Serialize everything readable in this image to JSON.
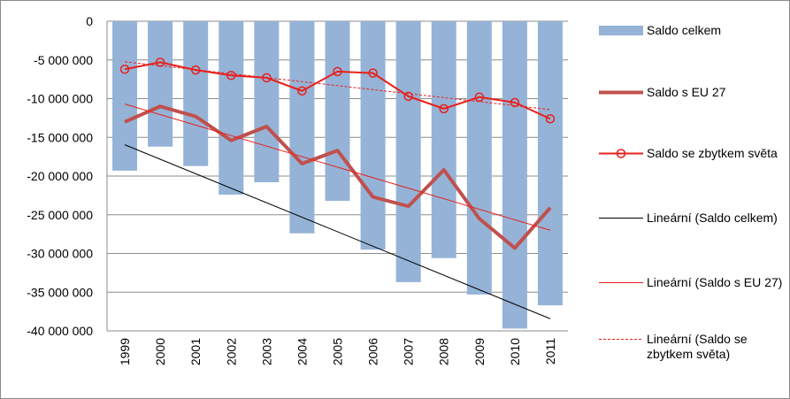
{
  "chart_data": {
    "type": "combo",
    "categories": [
      "1999",
      "2000",
      "2001",
      "2002",
      "2003",
      "2004",
      "2005",
      "2006",
      "2007",
      "2008",
      "2009",
      "2010",
      "2011"
    ],
    "ylim": [
      -40000000,
      0
    ],
    "yticks": [
      {
        "value": -40000000,
        "label": "-40 000 000"
      },
      {
        "value": -35000000,
        "label": "-35 000 000"
      },
      {
        "value": -30000000,
        "label": "-30 000 000"
      },
      {
        "value": -25000000,
        "label": "-25 000 000"
      },
      {
        "value": -20000000,
        "label": "-20 000 000"
      },
      {
        "value": -15000000,
        "label": "-15 000 000"
      },
      {
        "value": -10000000,
        "label": "-10 000 000"
      },
      {
        "value": -5000000,
        "label": "-5 000 000"
      },
      0
    ],
    "grid": true,
    "legend": "right",
    "series": [
      {
        "name": "Saldo celkem",
        "type": "bar",
        "color": "#95b3d7",
        "values": [
          -19300000,
          -16200000,
          -18700000,
          -22400000,
          -20800000,
          -27400000,
          -23200000,
          -29500000,
          -33700000,
          -30600000,
          -35300000,
          -39700000,
          -36700000
        ]
      },
      {
        "name": "Saldo s EU 27",
        "type": "line",
        "color": "#c0504d",
        "width": 4,
        "values": [
          -13000000,
          -11000000,
          -12300000,
          -15400000,
          -13600000,
          -18400000,
          -16700000,
          -22700000,
          -23900000,
          -19200000,
          -25500000,
          -29300000,
          -24100000
        ]
      },
      {
        "name": "Saldo se zbytkem světa",
        "type": "line",
        "color": "#e8201c",
        "width": 2,
        "marker": "circle",
        "values": [
          -6200000,
          -5300000,
          -6300000,
          -7000000,
          -7300000,
          -9000000,
          -6500000,
          -6700000,
          -9700000,
          -11300000,
          -9800000,
          -10500000,
          -12600000
        ]
      },
      {
        "name": "Lineární (Saldo celkem)",
        "type": "trendline",
        "color": "#000000",
        "width": 1
      },
      {
        "name": "Lineární (Saldo s EU 27)",
        "type": "trendline",
        "color": "#e8201c",
        "width": 1
      },
      {
        "name": "Lineární (Saldo se zbytkem světa)",
        "type": "trendline",
        "color": "#e8201c",
        "width": 1,
        "dashed": true
      }
    ]
  }
}
